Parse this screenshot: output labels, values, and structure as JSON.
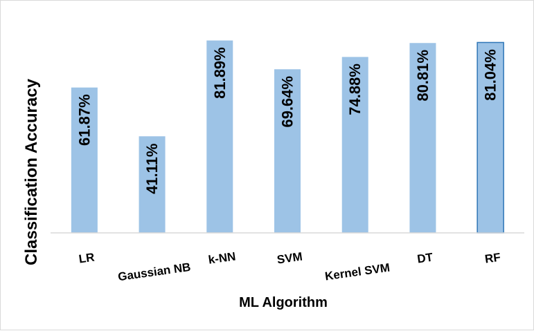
{
  "chart_data": {
    "type": "bar",
    "categories": [
      "LR",
      "Gaussian NB",
      "k-NN",
      "SVM",
      "Kernel SVM",
      "DT",
      "RF"
    ],
    "values": [
      61.87,
      41.11,
      81.89,
      69.64,
      74.88,
      80.81,
      81.04
    ],
    "data_labels": [
      "61.87%",
      "41.11%",
      "81.89%",
      "69.64%",
      "74.88%",
      "80.81%",
      "81.04%"
    ],
    "title": "",
    "xlabel": "ML Algorithm",
    "ylabel": "Classification  Accuracy",
    "ylim": [
      0,
      85
    ],
    "grid": false,
    "legend": "none",
    "colors": {
      "bar_fill": "#9dc3e6",
      "bar_highlight_stroke": "#2e75b6",
      "axis": "#d9d9d9",
      "text": "#000000"
    }
  }
}
